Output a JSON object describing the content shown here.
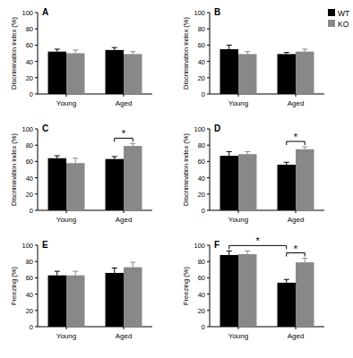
{
  "chart_data": [
    {
      "type": "bar",
      "title": "A",
      "y_label": "Discrimination index (%)",
      "categories": [
        "Young",
        "Aged"
      ],
      "ylim": [
        0,
        100
      ],
      "yticks": [
        0,
        20,
        40,
        60,
        80,
        100
      ],
      "series": [
        {
          "name": "WT",
          "color": "#000000",
          "values": [
            52,
            54
          ],
          "errors": [
            3,
            3
          ]
        },
        {
          "name": "KO",
          "color": "#888888",
          "values": [
            50,
            49
          ],
          "errors": [
            4,
            3
          ]
        }
      ],
      "annotations": []
    },
    {
      "type": "bar",
      "title": "B",
      "y_label": "Discrimination index (%)",
      "categories": [
        "Young",
        "Aged"
      ],
      "ylim": [
        0,
        100
      ],
      "yticks": [
        0,
        20,
        40,
        60,
        80,
        100
      ],
      "legend": "right",
      "series": [
        {
          "name": "WT",
          "color": "#000000",
          "values": [
            55,
            49
          ],
          "errors": [
            5,
            2
          ]
        },
        {
          "name": "KO",
          "color": "#888888",
          "values": [
            49,
            52
          ],
          "errors": [
            3,
            3
          ]
        }
      ],
      "annotations": []
    },
    {
      "type": "bar",
      "title": "C",
      "y_label": "Discrimination index (%)",
      "categories": [
        "Young",
        "Aged"
      ],
      "ylim": [
        0,
        100
      ],
      "yticks": [
        0,
        20,
        40,
        60,
        80,
        100
      ],
      "series": [
        {
          "name": "WT",
          "color": "#000000",
          "values": [
            64,
            63
          ],
          "errors": [
            3,
            3
          ]
        },
        {
          "name": "KO",
          "color": "#888888",
          "values": [
            58,
            79
          ],
          "errors": [
            6,
            3
          ]
        }
      ],
      "annotations": [
        {
          "text": "*",
          "from": {
            "category": "Aged",
            "series": "WT"
          },
          "to": {
            "category": "Aged",
            "series": "KO"
          }
        }
      ]
    },
    {
      "type": "bar",
      "title": "D",
      "y_label": "Discrimination index (%)",
      "categories": [
        "Young",
        "Aged"
      ],
      "ylim": [
        0,
        100
      ],
      "yticks": [
        0,
        20,
        40,
        60,
        80,
        100
      ],
      "series": [
        {
          "name": "WT",
          "color": "#000000",
          "values": [
            67,
            56
          ],
          "errors": [
            5,
            3
          ]
        },
        {
          "name": "KO",
          "color": "#888888",
          "values": [
            69,
            75
          ],
          "errors": [
            3,
            3
          ]
        }
      ],
      "annotations": [
        {
          "text": "*",
          "from": {
            "category": "Aged",
            "series": "WT"
          },
          "to": {
            "category": "Aged",
            "series": "KO"
          }
        }
      ]
    },
    {
      "type": "bar",
      "title": "E",
      "y_label": "Freezing (%)",
      "categories": [
        "Young",
        "Aged"
      ],
      "ylim": [
        0,
        100
      ],
      "yticks": [
        0,
        20,
        40,
        60,
        80,
        100
      ],
      "series": [
        {
          "name": "WT",
          "color": "#000000",
          "values": [
            63,
            66
          ],
          "errors": [
            5,
            6
          ]
        },
        {
          "name": "KO",
          "color": "#888888",
          "values": [
            63,
            73
          ],
          "errors": [
            5,
            6
          ]
        }
      ],
      "annotations": []
    },
    {
      "type": "bar",
      "title": "F",
      "y_label": "Freezing (%)",
      "categories": [
        "Young",
        "Aged"
      ],
      "ylim": [
        0,
        100
      ],
      "yticks": [
        0,
        20,
        40,
        60,
        80,
        100
      ],
      "series": [
        {
          "name": "WT",
          "color": "#000000",
          "values": [
            88,
            54
          ],
          "errors": [
            5,
            4
          ]
        },
        {
          "name": "KO",
          "color": "#888888",
          "values": [
            89,
            79
          ],
          "errors": [
            4,
            5
          ]
        }
      ],
      "annotations": [
        {
          "text": "*",
          "from": {
            "category": "Young",
            "series": "WT"
          },
          "to": {
            "category": "Aged",
            "series": "WT"
          }
        },
        {
          "text": "*",
          "from": {
            "category": "Aged",
            "series": "WT"
          },
          "to": {
            "category": "Aged",
            "series": "KO"
          }
        }
      ]
    }
  ]
}
